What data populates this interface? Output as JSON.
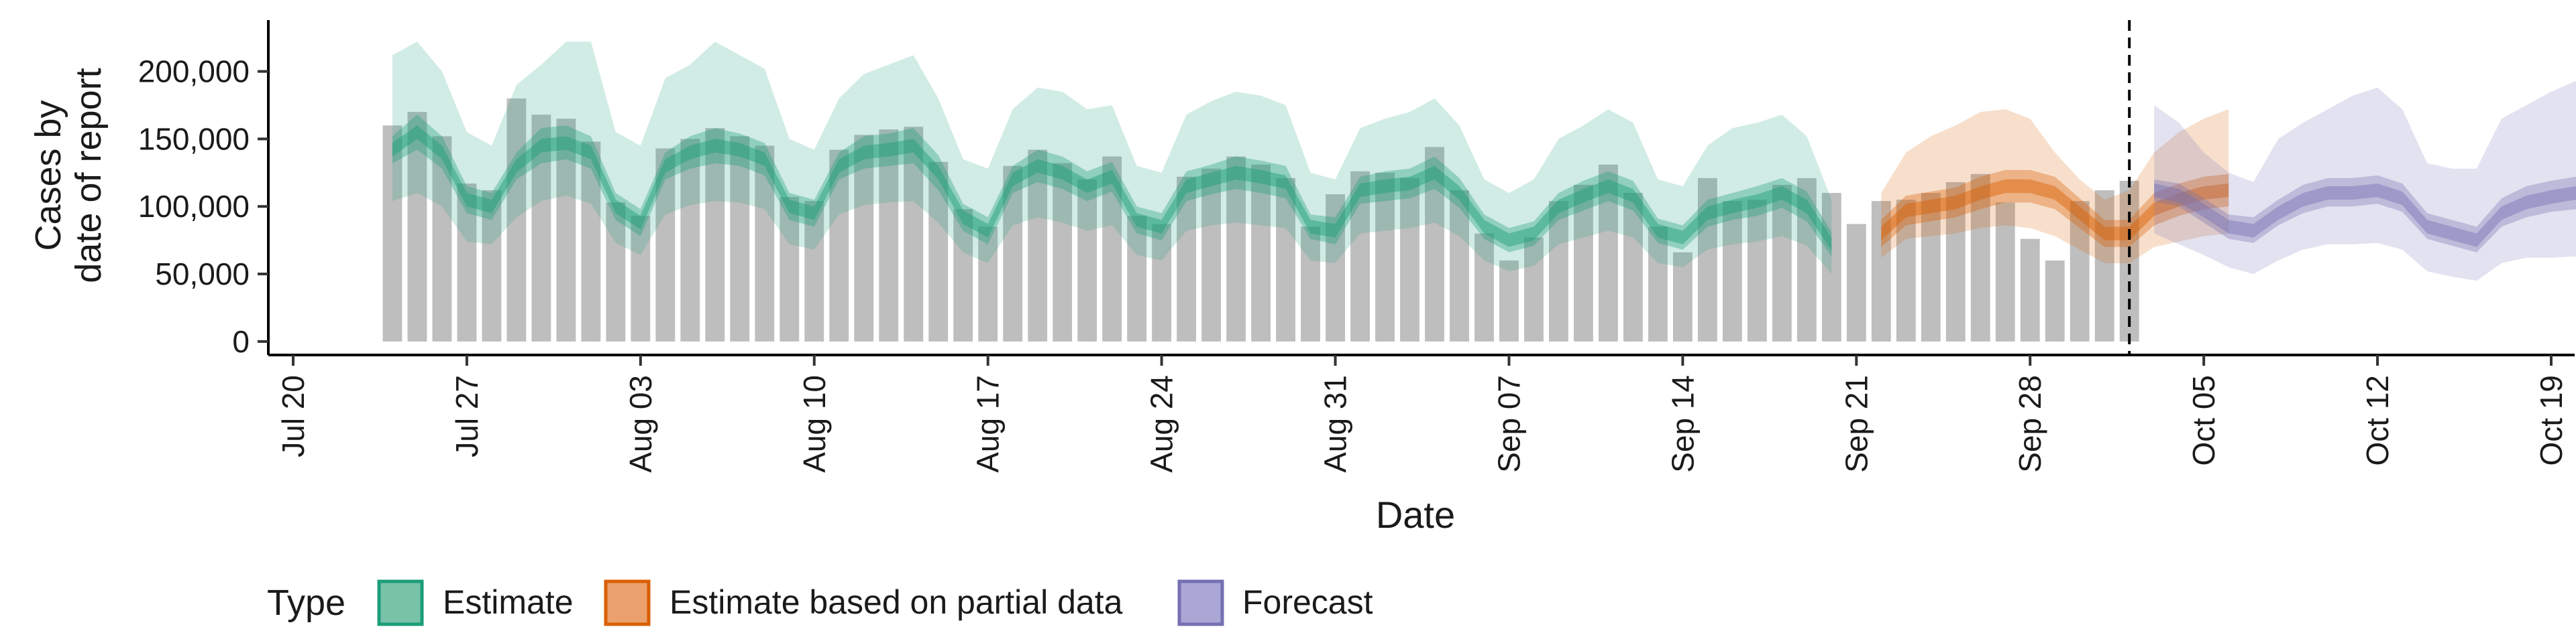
{
  "chart_data": {
    "type": "area",
    "ylabel_lines": [
      "Cases by",
      "date of report"
    ],
    "xlabel": "Date",
    "y_ticks": [
      0,
      50000,
      100000,
      150000,
      200000
    ],
    "y_tick_labels": [
      "0",
      "50,000",
      "100,000",
      "150,000",
      "200,000"
    ],
    "ylim": [
      -10000,
      238000
    ],
    "xlim": [
      "2020-07-19",
      "2020-10-20"
    ],
    "x_ticks": [
      "2020-07-20",
      "2020-07-27",
      "2020-08-03",
      "2020-08-10",
      "2020-08-17",
      "2020-08-24",
      "2020-08-31",
      "2020-09-07",
      "2020-09-14",
      "2020-09-21",
      "2020-09-28",
      "2020-10-05",
      "2020-10-12",
      "2020-10-19"
    ],
    "x_tick_labels": [
      "Jul 20",
      "Jul 27",
      "Aug 03",
      "Aug 10",
      "Aug 17",
      "Aug 24",
      "Aug 31",
      "Sep 07",
      "Sep 14",
      "Sep 21",
      "Sep 28",
      "Oct 05",
      "Oct 12",
      "Oct 19"
    ],
    "forecast_cutoff_date": "2020-10-02",
    "bars": {
      "start_date": "2020-07-24",
      "values": [
        160000,
        170000,
        152000,
        117000,
        112000,
        180000,
        168000,
        165000,
        148000,
        103000,
        93000,
        143000,
        150000,
        158000,
        152000,
        145000,
        107000,
        104000,
        142000,
        153000,
        157000,
        159000,
        133000,
        98000,
        85000,
        130000,
        142000,
        132000,
        120000,
        137000,
        93000,
        87000,
        122000,
        128000,
        137000,
        131000,
        121000,
        85000,
        109000,
        126000,
        125000,
        121000,
        144000,
        112000,
        80000,
        60000,
        77000,
        104000,
        116000,
        131000,
        110000,
        85000,
        66000,
        121000,
        104000,
        105000,
        116000,
        121000,
        110000,
        87000,
        104000,
        105000,
        110000,
        118000,
        124000,
        103000,
        76000,
        60000,
        104000,
        112000,
        119000
      ]
    },
    "series": [
      {
        "name": "Estimate",
        "color": "#1b9e77",
        "start_date": "2020-07-24",
        "median": [
          142000,
          155000,
          140000,
          105000,
          100000,
          130000,
          145000,
          147000,
          140000,
          100000,
          88000,
          130000,
          140000,
          145000,
          142000,
          135000,
          100000,
          95000,
          130000,
          140000,
          142000,
          145000,
          125000,
          92000,
          82000,
          120000,
          130000,
          125000,
          115000,
          122000,
          90000,
          85000,
          115000,
          120000,
          125000,
          122000,
          118000,
          85000,
          82000,
          112000,
          115000,
          117000,
          125000,
          110000,
          85000,
          75000,
          80000,
          100000,
          108000,
          115000,
          108000,
          82000,
          77000,
          95000,
          100000,
          104000,
          110000,
          100000,
          72000
        ],
        "lo50": [
          132000,
          142000,
          128000,
          95000,
          90000,
          120000,
          132000,
          135000,
          128000,
          90000,
          78000,
          120000,
          128000,
          132000,
          130000,
          123000,
          90000,
          85000,
          120000,
          128000,
          130000,
          132000,
          112000,
          82000,
          72000,
          110000,
          118000,
          113000,
          104000,
          111000,
          80000,
          75000,
          104000,
          109000,
          113000,
          110000,
          106000,
          76000,
          72000,
          102000,
          104000,
          106000,
          113000,
          99000,
          76000,
          66000,
          71000,
          90000,
          97000,
          104000,
          97000,
          73000,
          68000,
          85000,
          90000,
          93000,
          99000,
          89000,
          63000
        ],
        "hi50": [
          152000,
          168000,
          152000,
          115000,
          110000,
          140000,
          158000,
          160000,
          152000,
          110000,
          98000,
          140000,
          152000,
          158000,
          154000,
          147000,
          110000,
          105000,
          140000,
          152000,
          154000,
          158000,
          138000,
          102000,
          92000,
          130000,
          142000,
          137000,
          126000,
          133000,
          100000,
          95000,
          126000,
          131000,
          137000,
          134000,
          130000,
          94000,
          92000,
          122000,
          126000,
          128000,
          137000,
          121000,
          94000,
          84000,
          89000,
          110000,
          119000,
          126000,
          119000,
          91000,
          86000,
          105000,
          110000,
          115000,
          121000,
          111000,
          81000
        ],
        "lo90": [
          104000,
          110000,
          100000,
          74000,
          72000,
          92000,
          104000,
          108000,
          102000,
          73000,
          64000,
          94000,
          101000,
          104000,
          103000,
          98000,
          72000,
          68000,
          94000,
          101000,
          103000,
          104000,
          88000,
          66000,
          58000,
          86000,
          92000,
          88000,
          82000,
          86000,
          64000,
          60000,
          82000,
          86000,
          88000,
          86000,
          84000,
          60000,
          58000,
          80000,
          82000,
          84000,
          88000,
          78000,
          60000,
          52000,
          56000,
          72000,
          77000,
          82000,
          77000,
          58000,
          55000,
          68000,
          72000,
          74000,
          78000,
          71000,
          50000
        ],
        "hi90": [
          212000,
          222000,
          200000,
          155000,
          145000,
          190000,
          205000,
          222000,
          222000,
          155000,
          145000,
          195000,
          205000,
          222000,
          212000,
          202000,
          150000,
          142000,
          180000,
          198000,
          205000,
          212000,
          180000,
          135000,
          128000,
          172000,
          188000,
          185000,
          172000,
          175000,
          130000,
          125000,
          168000,
          178000,
          185000,
          182000,
          175000,
          125000,
          120000,
          158000,
          165000,
          170000,
          180000,
          160000,
          120000,
          110000,
          120000,
          150000,
          160000,
          172000,
          162000,
          120000,
          115000,
          145000,
          158000,
          162000,
          168000,
          152000,
          105000
        ]
      },
      {
        "name": "Estimate based on partial data",
        "color": "#d95f02",
        "start_date": "2020-09-22",
        "median": [
          80000,
          97000,
          100000,
          103000,
          110000,
          115000,
          115000,
          110000,
          95000,
          80000,
          80000,
          98000,
          105000,
          110000,
          112000
        ],
        "lo50": [
          70000,
          86000,
          89000,
          92000,
          98000,
          103000,
          103000,
          98000,
          84000,
          70000,
          70000,
          86000,
          93000,
          98000,
          100000
        ],
        "hi50": [
          90000,
          108000,
          111000,
          114000,
          122000,
          127000,
          127000,
          122000,
          106000,
          90000,
          90000,
          110000,
          117000,
          122000,
          124000
        ],
        "lo90": [
          62000,
          76000,
          78000,
          80000,
          84000,
          86000,
          84000,
          78000,
          68000,
          58000,
          58000,
          70000,
          74000,
          78000,
          80000
        ],
        "hi90": [
          110000,
          140000,
          152000,
          160000,
          170000,
          172000,
          165000,
          140000,
          120000,
          105000,
          112000,
          140000,
          155000,
          165000,
          172000
        ]
      },
      {
        "name": "Forecast",
        "color": "#7570b3",
        "start_date": "2020-10-03",
        "median": [
          112000,
          108000,
          97000,
          85000,
          82000,
          95000,
          105000,
          110000,
          110000,
          112000,
          106000,
          85000,
          80000,
          75000,
          95000,
          103000,
          107000,
          110000
        ],
        "lo50": [
          104000,
          100000,
          88000,
          76000,
          73000,
          86000,
          95000,
          100000,
          100000,
          102000,
          96000,
          76000,
          71000,
          66000,
          85000,
          92000,
          96000,
          98000
        ],
        "hi50": [
          120000,
          117000,
          106000,
          94000,
          92000,
          105000,
          116000,
          121000,
          121000,
          123000,
          117000,
          95000,
          90000,
          85000,
          106000,
          115000,
          119000,
          122000
        ],
        "lo90": [
          80000,
          72000,
          64000,
          55000,
          50000,
          60000,
          68000,
          72000,
          72000,
          73000,
          68000,
          52000,
          48000,
          45000,
          58000,
          62000,
          62000,
          63000
        ],
        "hi90": [
          175000,
          162000,
          140000,
          125000,
          118000,
          150000,
          162000,
          172000,
          182000,
          188000,
          172000,
          132000,
          128000,
          128000,
          165000,
          175000,
          185000,
          193000
        ]
      }
    ],
    "legend": {
      "title": "Type",
      "position": "bottom",
      "entries": [
        {
          "label": "Estimate",
          "fill": "#78c3a8",
          "stroke": "#1b9e77"
        },
        {
          "label": "Estimate based on partial data",
          "fill": "#eba16e",
          "stroke": "#d95f02"
        },
        {
          "label": "Forecast",
          "fill": "#aaa6d5",
          "stroke": "#7570b3"
        }
      ]
    },
    "bar_color": "#bebebe",
    "grid": false
  }
}
